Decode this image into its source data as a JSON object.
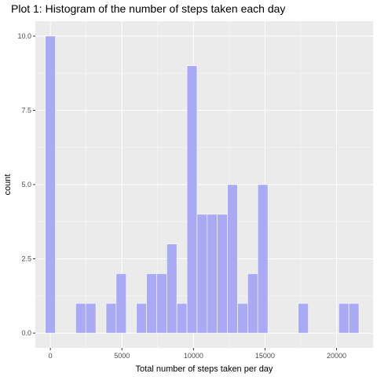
{
  "chart_data": {
    "type": "bar",
    "subtype": "histogram",
    "title": "Plot 1: Histogram of the number of steps taken each day",
    "xlabel": "Total number of steps taken per day",
    "ylabel": "count",
    "bin_width": 707,
    "bins": [
      {
        "x": 0,
        "count": 10
      },
      {
        "x": 2121,
        "count": 1
      },
      {
        "x": 2828,
        "count": 1
      },
      {
        "x": 4242,
        "count": 1
      },
      {
        "x": 4949,
        "count": 2
      },
      {
        "x": 6363,
        "count": 1
      },
      {
        "x": 7070,
        "count": 2
      },
      {
        "x": 7777,
        "count": 2
      },
      {
        "x": 8484,
        "count": 3
      },
      {
        "x": 9191,
        "count": 1
      },
      {
        "x": 9898,
        "count": 9
      },
      {
        "x": 10605,
        "count": 4
      },
      {
        "x": 11312,
        "count": 4
      },
      {
        "x": 12019,
        "count": 4
      },
      {
        "x": 12726,
        "count": 5
      },
      {
        "x": 13433,
        "count": 1
      },
      {
        "x": 14140,
        "count": 2
      },
      {
        "x": 14847,
        "count": 5
      },
      {
        "x": 17675,
        "count": 1
      },
      {
        "x": 20503,
        "count": 1
      },
      {
        "x": 21210,
        "count": 1
      }
    ],
    "xlim": [
      -1050,
      22550
    ],
    "ylim": [
      -0.5,
      10.5
    ],
    "x_ticks": [
      0,
      5000,
      10000,
      15000,
      20000
    ],
    "x_tick_labels": [
      "0",
      "5000",
      "10000",
      "15000",
      "20000"
    ],
    "y_ticks": [
      0,
      2.5,
      5,
      7.5,
      10
    ],
    "y_tick_labels": [
      "0.0",
      "2.5",
      "5.0",
      "7.5",
      "10.0"
    ],
    "grid": true,
    "bar_fill": "#aaaaf4",
    "bar_edge": "#ffffff",
    "panel_background": "#ebebeb",
    "grid_color": "#ffffff"
  }
}
